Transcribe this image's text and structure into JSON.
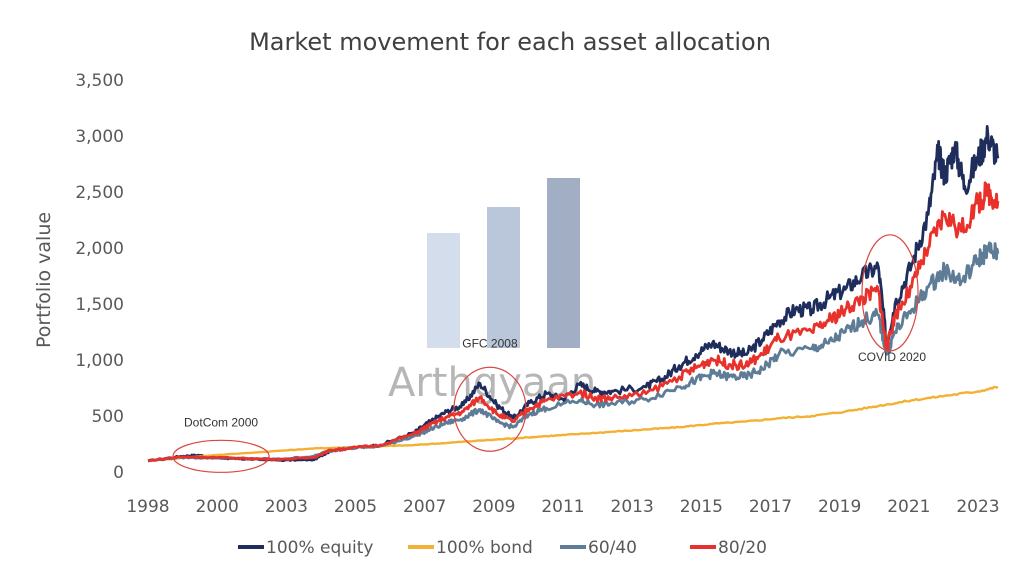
{
  "chart_data": {
    "type": "line",
    "title": "Market movement for each asset allocation",
    "xlabel": "",
    "ylabel": "Portfolio value",
    "x_ticks": [
      "1998",
      "2000",
      "2003",
      "2005",
      "2007",
      "2009",
      "2011",
      "2013",
      "2015",
      "2017",
      "2019",
      "2021",
      "2023"
    ],
    "x_range": [
      1998,
      2023
    ],
    "ylim": [
      0,
      3500
    ],
    "y_ticks": [
      "0",
      "500",
      "1,000",
      "1,500",
      "2,000",
      "2,500",
      "3,000",
      "3,500"
    ],
    "grid": false,
    "legend_position": "bottom",
    "series": [
      {
        "name": "100% equity",
        "color": "#1f2d5c",
        "points": [
          [
            1998,
            100
          ],
          [
            1999,
            140
          ],
          [
            1999.5,
            150
          ],
          [
            2000,
            130
          ],
          [
            2000.5,
            120
          ],
          [
            2001,
            115
          ],
          [
            2002,
            105
          ],
          [
            2003,
            110
          ],
          [
            2003.5,
            190
          ],
          [
            2004,
            210
          ],
          [
            2005,
            240
          ],
          [
            2006,
            350
          ],
          [
            2006.5,
            450
          ],
          [
            2007,
            540
          ],
          [
            2007.5,
            600
          ],
          [
            2008,
            790
          ],
          [
            2008.5,
            600
          ],
          [
            2009,
            480
          ],
          [
            2009.5,
            620
          ],
          [
            2010,
            700
          ],
          [
            2010.5,
            650
          ],
          [
            2011,
            780
          ],
          [
            2011.5,
            720
          ],
          [
            2012,
            720
          ],
          [
            2013,
            760
          ],
          [
            2013.5,
            830
          ],
          [
            2014,
            950
          ],
          [
            2014.5,
            1050
          ],
          [
            2015,
            1150
          ],
          [
            2015.5,
            1080
          ],
          [
            2016,
            1050
          ],
          [
            2016.5,
            1180
          ],
          [
            2017,
            1350
          ],
          [
            2017.5,
            1450
          ],
          [
            2018,
            1450
          ],
          [
            2018.5,
            1550
          ],
          [
            2019,
            1630
          ],
          [
            2019.5,
            1750
          ],
          [
            2020,
            1830
          ],
          [
            2020.25,
            1150
          ],
          [
            2020.5,
            1500
          ],
          [
            2021,
            1850
          ],
          [
            2021.5,
            2300
          ],
          [
            2021.8,
            2850
          ],
          [
            2022,
            2650
          ],
          [
            2022.3,
            2900
          ],
          [
            2022.6,
            2550
          ],
          [
            2023,
            2800
          ],
          [
            2023.3,
            3000
          ],
          [
            2023.6,
            2800
          ]
        ]
      },
      {
        "name": "100% bond",
        "color": "#f2b134",
        "points": [
          [
            1998,
            100
          ],
          [
            2000,
            150
          ],
          [
            2002,
            190
          ],
          [
            2003,
            210
          ],
          [
            2004,
            220
          ],
          [
            2005,
            230
          ],
          [
            2006,
            240
          ],
          [
            2007,
            260
          ],
          [
            2008,
            280
          ],
          [
            2009,
            300
          ],
          [
            2010,
            320
          ],
          [
            2011,
            340
          ],
          [
            2012,
            360
          ],
          [
            2013,
            380
          ],
          [
            2014,
            400
          ],
          [
            2015,
            430
          ],
          [
            2016,
            450
          ],
          [
            2017,
            480
          ],
          [
            2018,
            500
          ],
          [
            2019,
            540
          ],
          [
            2020,
            590
          ],
          [
            2021,
            640
          ],
          [
            2022,
            680
          ],
          [
            2023,
            720
          ],
          [
            2023.6,
            760
          ]
        ]
      },
      {
        "name": "60/40",
        "color": "#5e7c96",
        "points": [
          [
            1998,
            100
          ],
          [
            1999,
            130
          ],
          [
            2000,
            125
          ],
          [
            2001,
            120
          ],
          [
            2002,
            115
          ],
          [
            2003,
            140
          ],
          [
            2003.5,
            195
          ],
          [
            2004,
            210
          ],
          [
            2005,
            230
          ],
          [
            2006,
            320
          ],
          [
            2006.5,
            380
          ],
          [
            2007,
            440
          ],
          [
            2007.5,
            480
          ],
          [
            2008,
            560
          ],
          [
            2008.5,
            450
          ],
          [
            2009,
            400
          ],
          [
            2009.5,
            520
          ],
          [
            2010,
            570
          ],
          [
            2011,
            640
          ],
          [
            2011.5,
            600
          ],
          [
            2012,
            610
          ],
          [
            2013,
            650
          ],
          [
            2014,
            760
          ],
          [
            2014.5,
            820
          ],
          [
            2015,
            880
          ],
          [
            2015.5,
            850
          ],
          [
            2016,
            850
          ],
          [
            2016.5,
            920
          ],
          [
            2017,
            1050
          ],
          [
            2018,
            1100
          ],
          [
            2018.5,
            1150
          ],
          [
            2019,
            1250
          ],
          [
            2019.5,
            1350
          ],
          [
            2020,
            1400
          ],
          [
            2020.25,
            1050
          ],
          [
            2020.5,
            1250
          ],
          [
            2021,
            1450
          ],
          [
            2021.5,
            1650
          ],
          [
            2022,
            1800
          ],
          [
            2022.5,
            1700
          ],
          [
            2023,
            1900
          ],
          [
            2023.3,
            1980
          ],
          [
            2023.6,
            1950
          ]
        ]
      },
      {
        "name": "80/20",
        "color": "#e8312a",
        "points": [
          [
            1998,
            100
          ],
          [
            1999,
            135
          ],
          [
            2000,
            130
          ],
          [
            2001,
            120
          ],
          [
            2002,
            112
          ],
          [
            2003,
            130
          ],
          [
            2003.5,
            195
          ],
          [
            2004,
            210
          ],
          [
            2005,
            240
          ],
          [
            2006,
            340
          ],
          [
            2006.5,
            420
          ],
          [
            2007,
            490
          ],
          [
            2007.5,
            540
          ],
          [
            2008,
            670
          ],
          [
            2008.5,
            520
          ],
          [
            2009,
            450
          ],
          [
            2009.5,
            570
          ],
          [
            2010,
            640
          ],
          [
            2011,
            710
          ],
          [
            2011.5,
            660
          ],
          [
            2012,
            660
          ],
          [
            2013,
            700
          ],
          [
            2014,
            850
          ],
          [
            2014.5,
            930
          ],
          [
            2015,
            1010
          ],
          [
            2015.5,
            960
          ],
          [
            2016,
            950
          ],
          [
            2016.5,
            1050
          ],
          [
            2017,
            1200
          ],
          [
            2018,
            1250
          ],
          [
            2018.5,
            1350
          ],
          [
            2019,
            1450
          ],
          [
            2019.5,
            1550
          ],
          [
            2020,
            1620
          ],
          [
            2020.25,
            1100
          ],
          [
            2020.5,
            1400
          ],
          [
            2021,
            1650
          ],
          [
            2021.5,
            2000
          ],
          [
            2022,
            2300
          ],
          [
            2022.5,
            2150
          ],
          [
            2023,
            2400
          ],
          [
            2023.3,
            2500
          ],
          [
            2023.6,
            2420
          ]
        ]
      }
    ],
    "annotations": [
      {
        "label": "DotCom 2000",
        "x": 2000.2,
        "y": 140
      },
      {
        "label": "GFC 2008",
        "x": 2008.3,
        "y": 560
      },
      {
        "label": "COVID 2020",
        "x": 2020.35,
        "y": 1600
      }
    ],
    "watermark": "Arthgyaan"
  }
}
